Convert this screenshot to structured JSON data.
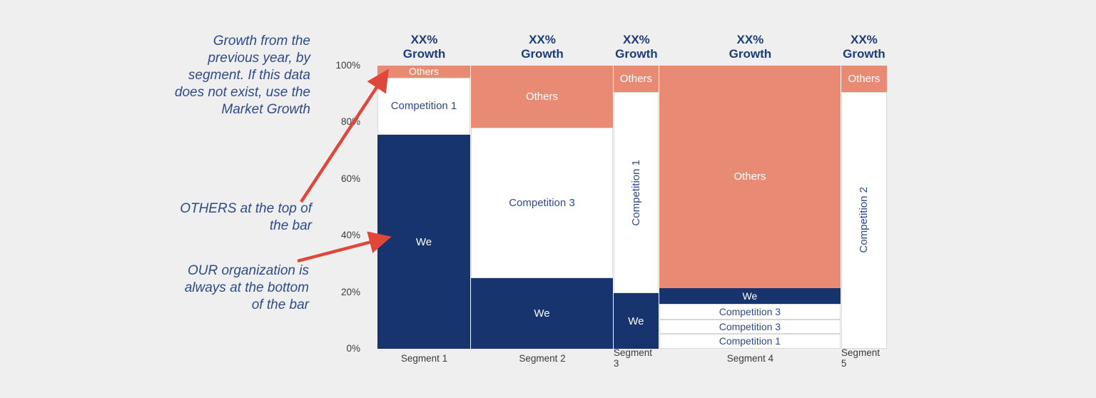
{
  "colors": {
    "background": "#EFEFEF",
    "navy": "#17346E",
    "salmon": "#E98A74",
    "white_block": "#FFFFFF",
    "header_text": "#1D3C7C",
    "annotation_text": "#2D4A8E",
    "label_on_white": "#2D4A8E",
    "label_on_dark": "#FFFFFF",
    "axis_text": "#3A3A3A",
    "arrow": "#E0473B",
    "block_border": "#D8D8D8"
  },
  "annotations": {
    "growth_note": "Growth from the\nprevious year, by\nsegment. If this data\ndoes not exist, use the\nMarket Growth",
    "others_note": "OTHERS at the top of\nthe bar",
    "we_note": "OUR organization is\nalways at the bottom\nof the bar"
  },
  "chart_data": {
    "type": "bar",
    "subtype": "marimekko-100pct-stacked",
    "grid": false,
    "growth_header": "XX%\nGrowth",
    "y_axis": {
      "range": [
        0,
        100
      ],
      "tick_values": [
        0,
        20,
        40,
        60,
        80,
        100
      ],
      "tick_labels": [
        "0%",
        "20%",
        "40%",
        "60%",
        "80%",
        "100%"
      ]
    },
    "categories": [
      "Segment 1",
      "Segment 2",
      "Segment 3",
      "Segment 4",
      "Segment 5"
    ],
    "segments": [
      {
        "label": "Segment 1",
        "width_pct": 18.35,
        "stack": [
          {
            "name": "We",
            "pct": 75.5,
            "style": "navy"
          },
          {
            "name": "Competition 1",
            "pct": 20.3,
            "style": "white"
          },
          {
            "name": "Others",
            "pct": 4.2,
            "style": "salmon"
          }
        ]
      },
      {
        "label": "Segment 2",
        "width_pct": 28.0,
        "stack": [
          {
            "name": "We",
            "pct": 25.0,
            "style": "navy"
          },
          {
            "name": "Competition 3",
            "pct": 53.2,
            "style": "white"
          },
          {
            "name": "Others",
            "pct": 21.8,
            "style": "salmon"
          }
        ]
      },
      {
        "label": "Segment 3",
        "width_pct": 8.96,
        "stack": [
          {
            "name": "We",
            "pct": 19.6,
            "style": "navy"
          },
          {
            "name": "Competition 1",
            "pct": 71.0,
            "style": "white",
            "vertical": true
          },
          {
            "name": "Others",
            "pct": 9.4,
            "style": "salmon"
          }
        ]
      },
      {
        "label": "Segment 4",
        "width_pct": 35.72,
        "stack": [
          {
            "name": "Competition 1",
            "pct": 5.3,
            "style": "white"
          },
          {
            "name": "Competition 3",
            "pct": 5.1,
            "style": "white"
          },
          {
            "name": "Competition 3",
            "pct": 5.4,
            "style": "white"
          },
          {
            "name": "We",
            "pct": 5.7,
            "style": "navy"
          },
          {
            "name": "Others",
            "pct": 78.5,
            "style": "salmon"
          }
        ]
      },
      {
        "label": "Segment 5",
        "width_pct": 8.96,
        "stack": [
          {
            "name": "Competition 2",
            "pct": 90.8,
            "style": "white",
            "vertical": true
          },
          {
            "name": "Others",
            "pct": 9.2,
            "style": "salmon"
          }
        ]
      }
    ]
  }
}
